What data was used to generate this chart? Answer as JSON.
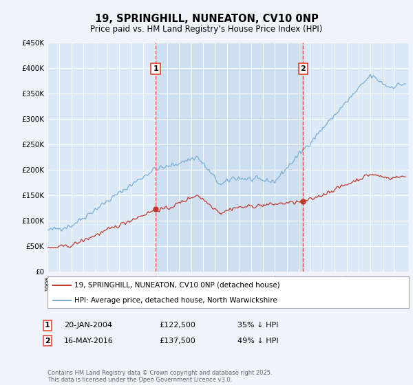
{
  "title": "19, SPRINGHILL, NUNEATON, CV10 0NP",
  "subtitle": "Price paid vs. HM Land Registry’s House Price Index (HPI)",
  "ylim": [
    0,
    450000
  ],
  "yticks": [
    0,
    50000,
    100000,
    150000,
    200000,
    250000,
    300000,
    350000,
    400000,
    450000
  ],
  "ytick_labels": [
    "£0",
    "£50K",
    "£100K",
    "£150K",
    "£200K",
    "£250K",
    "£300K",
    "£350K",
    "£400K",
    "£450K"
  ],
  "background_color": "#f0f4fa",
  "plot_bg_color": "#dce9f7",
  "grid_color": "#ffffff",
  "hpi_color": "#7aadd4",
  "price_color": "#c0392b",
  "vline_color": "#e74c3c",
  "shade_color": "#c5d9ee",
  "marker1_date": "20-JAN-2004",
  "marker1_price": "£122,500",
  "marker1_hpi": "35% ↓ HPI",
  "marker2_date": "16-MAY-2016",
  "marker2_price": "£137,500",
  "marker2_hpi": "49% ↓ HPI",
  "legend_line1": "19, SPRINGHILL, NUNEATON, CV10 0NP (detached house)",
  "legend_line2": "HPI: Average price, detached house, North Warwickshire",
  "footer": "Contains HM Land Registry data © Crown copyright and database right 2025.\nThis data is licensed under the Open Government Licence v3.0.",
  "vline1_x": 2004.05,
  "vline2_x": 2016.37,
  "xmin": 1995,
  "xmax": 2025.2,
  "sale1_x": 2004.05,
  "sale1_y": 122500,
  "sale2_x": 2016.37,
  "sale2_y": 137500
}
